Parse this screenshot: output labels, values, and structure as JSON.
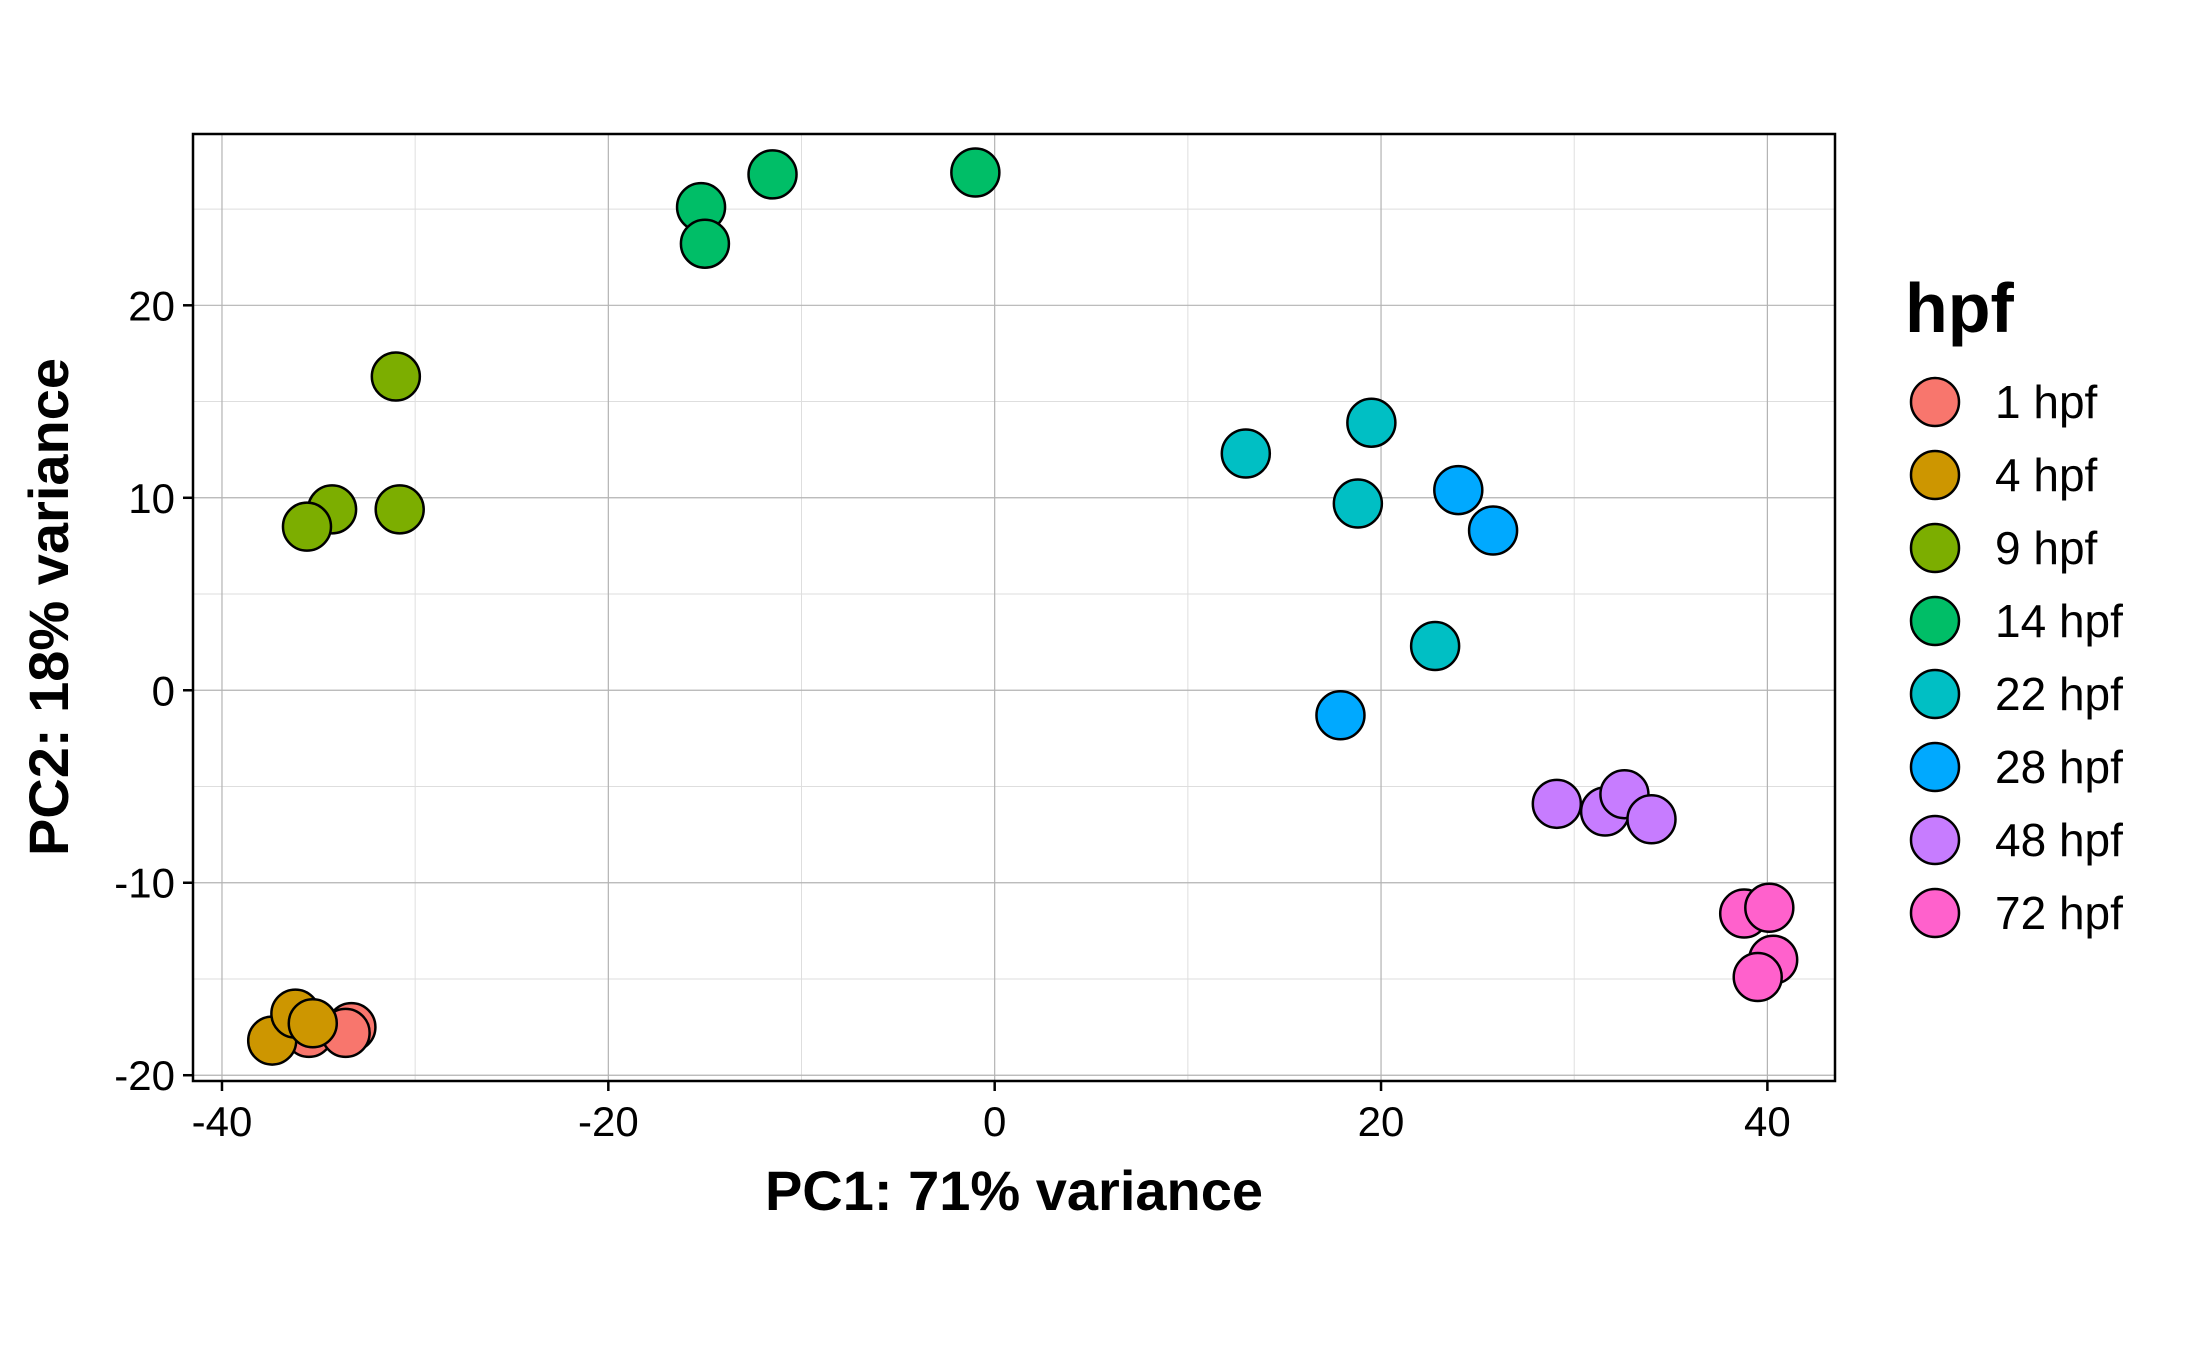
{
  "chart_data": {
    "type": "scatter",
    "title": "",
    "xlabel": "PC1: 71% variance",
    "ylabel": "PC2: 18% variance",
    "xlim": [
      -41.5,
      43.5
    ],
    "ylim": [
      -20.3,
      28.9
    ],
    "x_ticks": [
      -40,
      -20,
      0,
      20,
      40
    ],
    "y_ticks": [
      -20,
      -10,
      0,
      10,
      20
    ],
    "x_tick_labels": [
      "-40",
      "-20",
      "0",
      "20",
      "40"
    ],
    "y_tick_labels": [
      "-20",
      "-10",
      "0",
      "10",
      "20"
    ],
    "grid": true,
    "legend": {
      "title": "hpf",
      "position": "right"
    },
    "series": [
      {
        "name": "1 hpf",
        "color": "#F8766D",
        "points": [
          [
            -35.5,
            -17.8
          ],
          [
            -33.3,
            -17.5
          ],
          [
            -33.6,
            -17.8
          ]
        ]
      },
      {
        "name": "4 hpf",
        "color": "#CD9600",
        "points": [
          [
            -37.4,
            -18.2
          ],
          [
            -36.2,
            -16.8
          ],
          [
            -35.3,
            -17.3
          ]
        ]
      },
      {
        "name": "9 hpf",
        "color": "#7CAE00",
        "points": [
          [
            -31.0,
            16.3
          ],
          [
            -34.3,
            9.4
          ],
          [
            -35.6,
            8.5
          ],
          [
            -30.8,
            9.4
          ]
        ]
      },
      {
        "name": "14 hpf",
        "color": "#00BE67",
        "points": [
          [
            -15.2,
            25.1
          ],
          [
            -15.0,
            23.2
          ],
          [
            -11.5,
            26.8
          ],
          [
            -1.0,
            26.9
          ]
        ]
      },
      {
        "name": "22 hpf",
        "color": "#00BFC4",
        "points": [
          [
            13.0,
            12.3
          ],
          [
            19.5,
            13.9
          ],
          [
            18.8,
            9.7
          ],
          [
            22.8,
            2.3
          ]
        ]
      },
      {
        "name": "28 hpf",
        "color": "#00A9FF",
        "points": [
          [
            24.0,
            10.4
          ],
          [
            25.8,
            8.3
          ],
          [
            17.9,
            -1.3
          ]
        ]
      },
      {
        "name": "48 hpf",
        "color": "#C77CFF",
        "points": [
          [
            29.1,
            -5.9
          ],
          [
            31.6,
            -6.3
          ],
          [
            32.6,
            -5.4
          ],
          [
            34.0,
            -6.7
          ]
        ]
      },
      {
        "name": "72 hpf",
        "color": "#FF61CC",
        "points": [
          [
            38.8,
            -11.6
          ],
          [
            40.1,
            -11.3
          ],
          [
            40.3,
            -14.0
          ],
          [
            39.5,
            -14.9
          ]
        ]
      }
    ]
  }
}
